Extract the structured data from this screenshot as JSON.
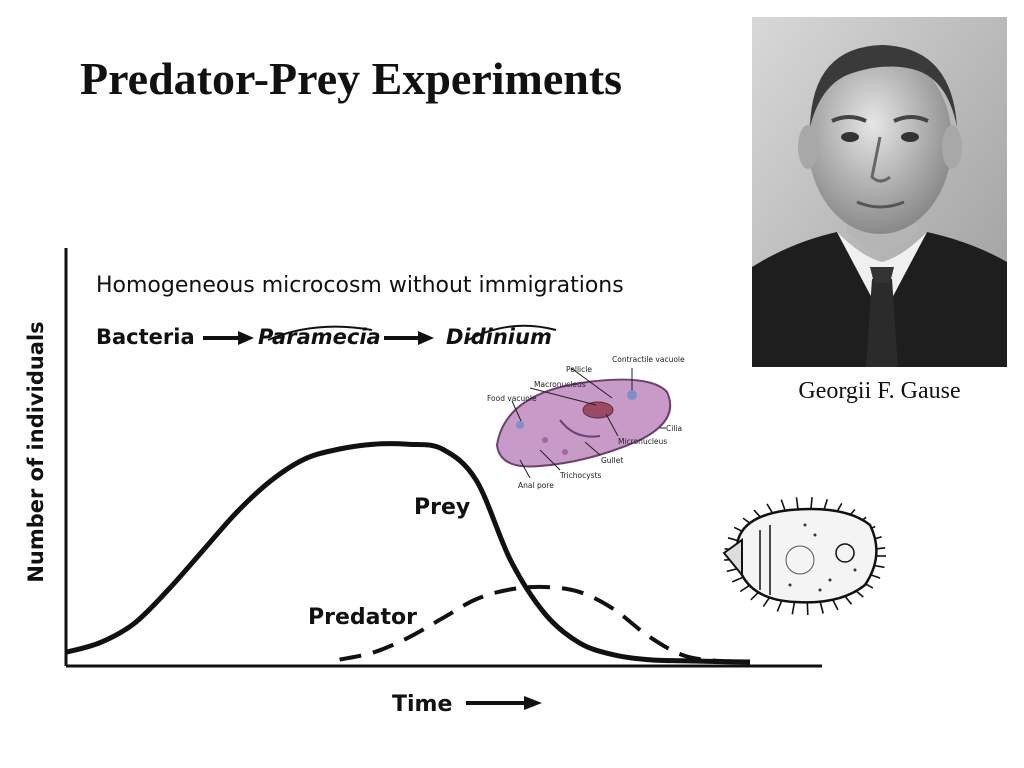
{
  "slide": {
    "title": "Predator-Prey Experiments",
    "photo_caption": "Georgii F. Gause"
  },
  "diagram": {
    "heading": "Homogeneous microcosm without immigrations",
    "chain": [
      "Bacteria",
      "Paramecia",
      "Didinium"
    ],
    "paramecium_labels": [
      "Contractile vacuole",
      "Pellicle",
      "Macronucleus",
      "Food vacuole",
      "Cilia",
      "Micronucleus",
      "Gullet",
      "Trichocysts",
      "Anal pore"
    ]
  },
  "chart_data": {
    "type": "line",
    "xlabel": "Time",
    "ylabel": "Number of individuals",
    "x": [
      0,
      5,
      10,
      15,
      20,
      25,
      30,
      35,
      40,
      45,
      50,
      55,
      60,
      65,
      70,
      75,
      80,
      85,
      90,
      95,
      100
    ],
    "ylim": [
      0,
      100
    ],
    "series": [
      {
        "name": "Prey",
        "style": "solid",
        "values": [
          4,
          8,
          16,
          30,
          46,
          62,
          75,
          84,
          88,
          90,
          90,
          88,
          75,
          42,
          20,
          8,
          3,
          1,
          0.5,
          0.2,
          0
        ]
      },
      {
        "name": "Predator",
        "style": "dashed",
        "values": [
          null,
          null,
          null,
          null,
          null,
          null,
          null,
          null,
          1,
          4,
          10,
          18,
          26,
          30,
          31,
          29,
          22,
          11,
          3,
          0.5,
          0.2
        ]
      }
    ],
    "grid": false
  },
  "colors": {
    "ink": "#111111",
    "paramecium_fill": "#c79ac7",
    "paramecium_outline": "#6e3f72",
    "macronucleus": "#9a4a64"
  },
  "icons": [
    "gause-portrait",
    "paramecium-illustration",
    "didinium-illustration",
    "arrow-icon"
  ]
}
